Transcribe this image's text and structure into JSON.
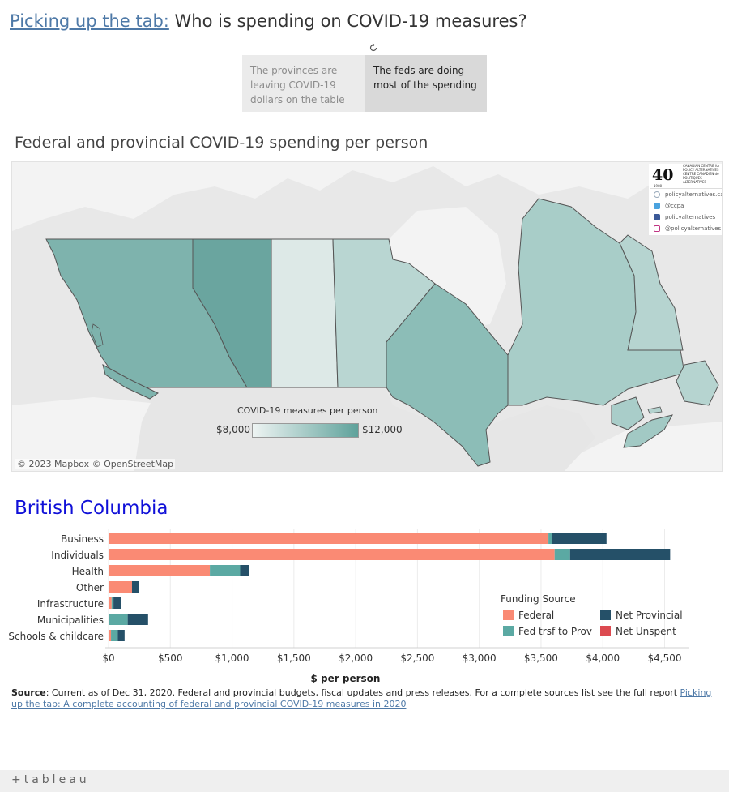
{
  "header": {
    "title_link": "Picking up the tab:",
    "title_rest": " Who is spending on COVID-19 measures?"
  },
  "toggles": [
    {
      "label": "The provinces are leaving COVID-19 dollars on the table",
      "selected": false
    },
    {
      "label": "The feds are doing most of the spending",
      "selected": true
    }
  ],
  "map": {
    "title": "Federal and provincial COVID-19 spending per person",
    "attribution": "© 2023 Mapbox  © OpenStreetMap",
    "legend": {
      "title": "COVID-19 measures per person",
      "min": "$8,000",
      "max": "$12,000",
      "color_low": "#eef4f3",
      "color_high": "#5fa29b"
    },
    "logo": {
      "mark": "40",
      "text": "CANADIAN CENTRE for POLICY ALTERNATIVES CENTRE CANADIEN de POLITIQUES ALTERNATIVES",
      "year": "1980",
      "social": [
        {
          "icon": "web-icon",
          "label": "policyalternatives.ca",
          "color": "#9ab"
        },
        {
          "icon": "twitter-icon",
          "label": "@ccpa",
          "color": "#4aa3df"
        },
        {
          "icon": "facebook-icon",
          "label": "policyalternatives",
          "color": "#3b5998"
        },
        {
          "icon": "instagram-icon",
          "label": "@policyalternatives",
          "color": "#c13584"
        }
      ]
    }
  },
  "province_panel": {
    "title": "British Columbia"
  },
  "chart_data": {
    "type": "bar",
    "orientation": "horizontal",
    "stacked": true,
    "categories": [
      "Business",
      "Individuals",
      "Health",
      "Other",
      "Infrastructure",
      "Municipalities",
      "Schools & childcare"
    ],
    "series": [
      {
        "name": "Federal",
        "color": "#fa8a74",
        "values": [
          3560,
          3610,
          820,
          190,
          25,
          0,
          20
        ]
      },
      {
        "name": "Fed trsf to Prov",
        "color": "#5ba9a3",
        "values": [
          30,
          125,
          245,
          0,
          15,
          155,
          55
        ]
      },
      {
        "name": "Net Provincial",
        "color": "#255068",
        "values": [
          440,
          810,
          70,
          55,
          60,
          165,
          55
        ]
      },
      {
        "name": "Net Unspent",
        "color": "#dc4a50",
        "values": [
          0,
          0,
          0,
          0,
          0,
          0,
          0
        ]
      }
    ],
    "xlim": [
      0,
      4700
    ],
    "xticks": [
      0,
      500,
      1000,
      1500,
      2000,
      2500,
      3000,
      3500,
      4000,
      4500
    ],
    "xtick_labels": [
      "$0",
      "$500",
      "$1,000",
      "$1,500",
      "$2,000",
      "$2,500",
      "$3,000",
      "$3,500",
      "$4,000",
      "$4,500"
    ],
    "xlabel": "$ per person",
    "legend_title": "Funding Source",
    "legend_position": "bottom-right",
    "grid": true
  },
  "source_note": {
    "label": "Source",
    "text": ": Current as of Dec 31, 2020. Federal and provincial budgets, fiscal updates and press releases.  For a complete sources list see the full report ",
    "link": "Picking up the tab: A complete accounting of federal and provincial COVID-19 measures in 2020"
  },
  "footer": {
    "brand": "+tableau"
  }
}
